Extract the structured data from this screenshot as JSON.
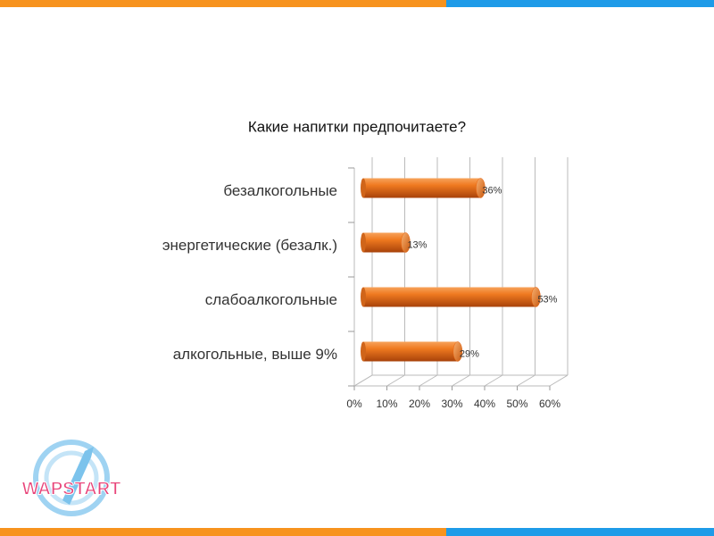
{
  "chart_data": {
    "type": "bar",
    "orientation": "horizontal",
    "title": "Какие напитки предпочитаете?",
    "categories": [
      "безалкогольные",
      "энергетические (безалк.)",
      "слабоалкогольные",
      "алкогольные, выше 9%"
    ],
    "values": [
      36,
      13,
      53,
      29
    ],
    "value_labels": [
      "36%",
      "13%",
      "53%",
      "29%"
    ],
    "color": "#e8600c",
    "xlim": [
      0,
      60
    ],
    "xticks": [
      {
        "value": 0,
        "label": "0%"
      },
      {
        "value": 10,
        "label": "10%"
      },
      {
        "value": 20,
        "label": "20%"
      },
      {
        "value": 30,
        "label": "30%"
      },
      {
        "value": 40,
        "label": "40%"
      },
      {
        "value": 50,
        "label": "50%"
      },
      {
        "value": 60,
        "label": "60%"
      }
    ],
    "grid": true
  },
  "logo": "WAPSTART"
}
